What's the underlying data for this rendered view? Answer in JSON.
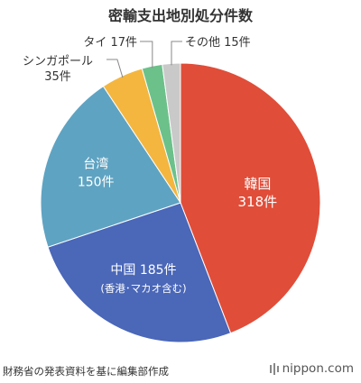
{
  "title": "密輸支出地別処分件数",
  "chart_data": {
    "type": "pie",
    "title": "密輸支出地別処分件数",
    "slices": [
      {
        "name": "韓国",
        "value": 318,
        "label_lines": [
          "韓国",
          "318件"
        ],
        "color": "#e04d39"
      },
      {
        "name": "中国",
        "value": 185,
        "label_lines": [
          "中国 185件",
          "(香港･マカオ含む)"
        ],
        "color": "#4a67b8"
      },
      {
        "name": "台湾",
        "value": 150,
        "label_lines": [
          "台湾",
          "150件"
        ],
        "color": "#5fa3c2"
      },
      {
        "name": "シンガポール",
        "value": 35,
        "label_lines": [
          "シンガポール",
          "35件"
        ],
        "color": "#f4b63f"
      },
      {
        "name": "タイ",
        "value": 17,
        "label_lines": [
          "タイ 17件"
        ],
        "color": "#6cc18a"
      },
      {
        "name": "その他",
        "value": 15,
        "label_lines": [
          "その他 15件"
        ],
        "color": "#c9c9c9"
      }
    ]
  },
  "source": "財務省の発表資料を基に編集部作成",
  "brand": "nippon.com"
}
